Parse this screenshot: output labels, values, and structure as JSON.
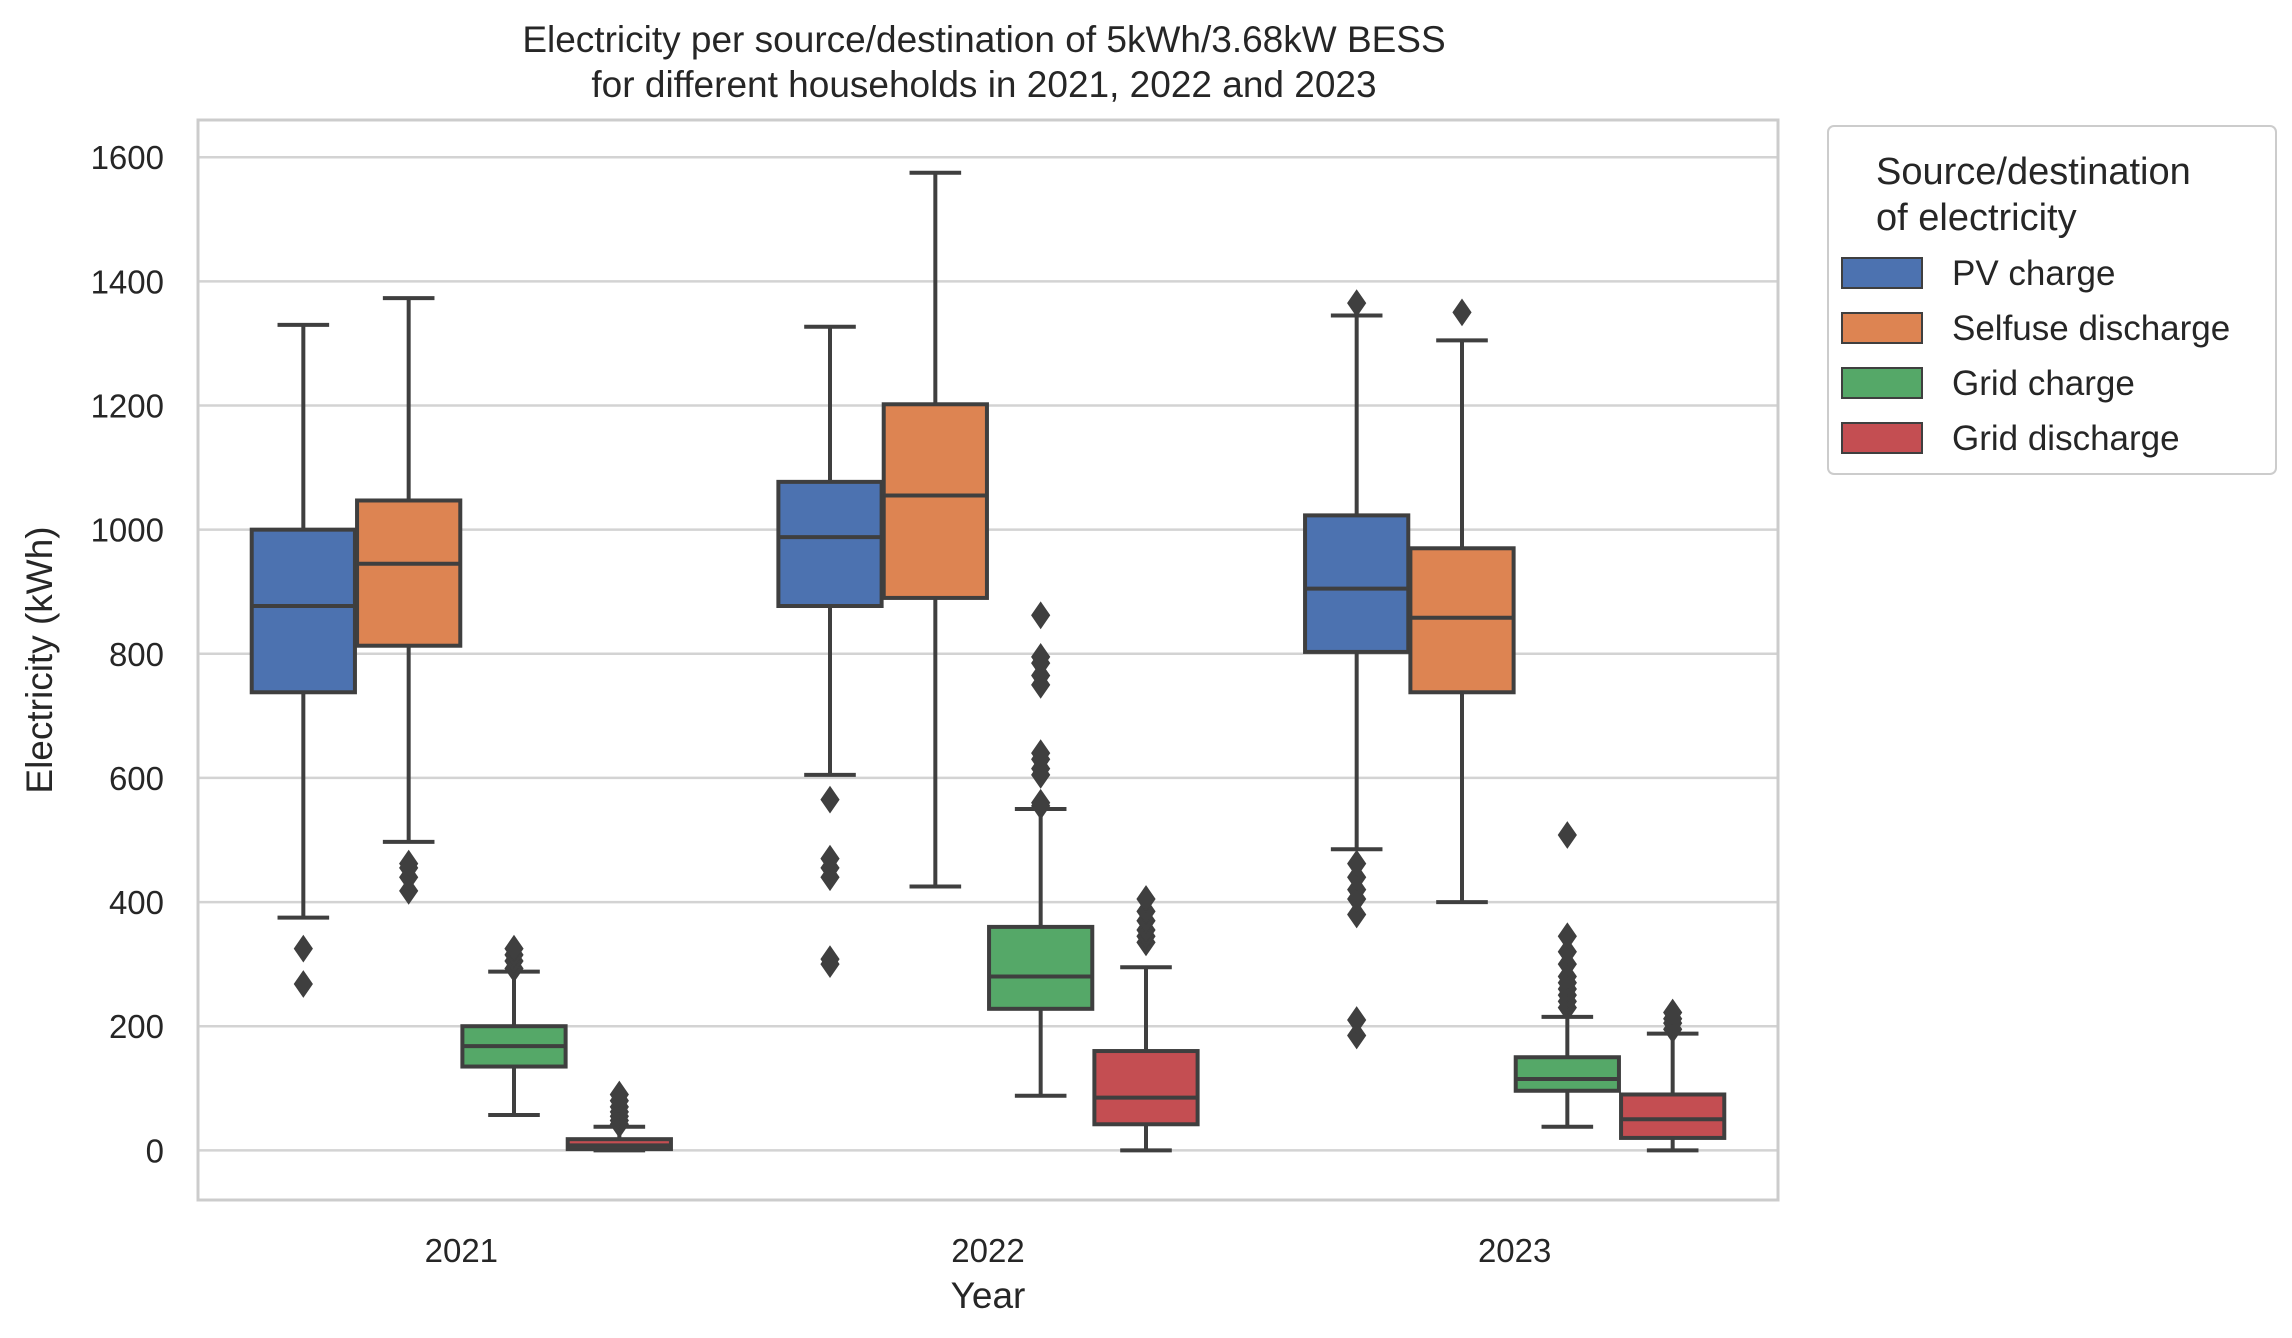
{
  "chart_data": {
    "type": "boxplot",
    "title_lines": [
      "Electricity per source/destination of 5kWh/3.68kW BESS",
      "for different households in 2021, 2022 and 2023"
    ],
    "xlabel": "Year",
    "ylabel": "Electricity (kWh)",
    "categories": [
      "2021",
      "2022",
      "2023"
    ],
    "ylim": [
      -80,
      1660
    ],
    "yticks": [
      0,
      200,
      400,
      600,
      800,
      1000,
      1200,
      1400,
      1600
    ],
    "grid": true,
    "legend": {
      "title_lines": [
        "Source/destination",
        "of electricity"
      ],
      "position": "outside-right-top"
    },
    "series": [
      {
        "name": "PV charge",
        "color": "#4c72b0",
        "boxes": [
          {
            "min": 375,
            "q1": 738,
            "median": 877,
            "q3": 1000,
            "max": 1330,
            "outliers": [
              268,
              325
            ]
          },
          {
            "min": 605,
            "q1": 877,
            "median": 988,
            "q3": 1077,
            "max": 1327,
            "outliers": [
              300,
              308,
              440,
              455,
              470,
              565
            ]
          },
          {
            "min": 485,
            "q1": 803,
            "median": 905,
            "q3": 1023,
            "max": 1345,
            "outliers": [
              185,
              210,
              380,
              405,
              420,
              440,
              462,
              1365
            ]
          }
        ]
      },
      {
        "name": "Selfuse discharge",
        "color": "#dd8452",
        "boxes": [
          {
            "min": 497,
            "q1": 813,
            "median": 945,
            "q3": 1047,
            "max": 1373,
            "outliers": [
              418,
              440,
              455,
              462
            ]
          },
          {
            "min": 425,
            "q1": 890,
            "median": 1055,
            "q3": 1202,
            "max": 1575,
            "outliers": []
          },
          {
            "min": 400,
            "q1": 738,
            "median": 858,
            "q3": 970,
            "max": 1305,
            "outliers": [
              1350
            ]
          }
        ]
      },
      {
        "name": "Grid charge",
        "color": "#55a868",
        "boxes": [
          {
            "min": 57,
            "q1": 135,
            "median": 168,
            "q3": 200,
            "max": 288,
            "outliers": [
              293,
              305,
              315,
              325
            ]
          },
          {
            "min": 88,
            "q1": 228,
            "median": 280,
            "q3": 360,
            "max": 550,
            "outliers": [
              555,
              560,
              605,
              615,
              630,
              640,
              750,
              765,
              785,
              795,
              862
            ]
          },
          {
            "min": 38,
            "q1": 96,
            "median": 115,
            "q3": 150,
            "max": 215,
            "outliers": [
              230,
              240,
              250,
              260,
              270,
              280,
              300,
              320,
              345,
              508
            ]
          }
        ]
      },
      {
        "name": "Grid discharge",
        "color": "#c44e52",
        "boxes": [
          {
            "min": 0,
            "q1": 2,
            "median": 8,
            "q3": 18,
            "max": 38,
            "outliers": [
              42,
              48,
              55,
              62,
              70,
              80,
              90
            ]
          },
          {
            "min": 0,
            "q1": 42,
            "median": 85,
            "q3": 160,
            "max": 295,
            "outliers": [
              335,
              345,
              355,
              370,
              385,
              405
            ]
          },
          {
            "min": 0,
            "q1": 20,
            "median": 50,
            "q3": 90,
            "max": 188,
            "outliers": [
              195,
              205,
              212,
              222
            ]
          }
        ]
      }
    ]
  }
}
